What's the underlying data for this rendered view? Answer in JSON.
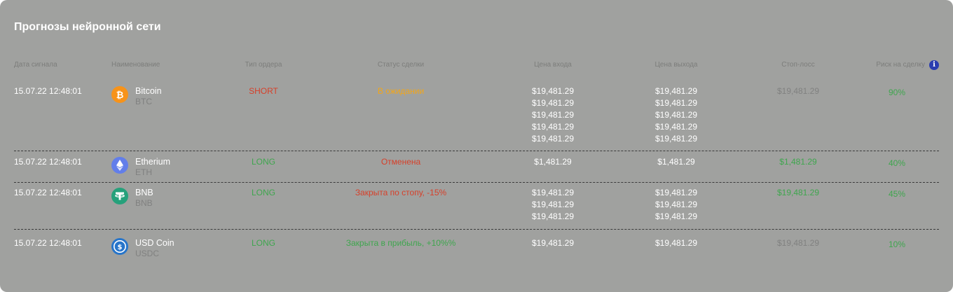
{
  "title": "Прогнозы нейронной сети",
  "headers": {
    "date": "Дата сигнала",
    "name": "Наименование",
    "type": "Тип ордера",
    "status": "Статус сделки",
    "entry": "Цена входа",
    "exit": "Цена выхода",
    "stop": "Стоп-лосс",
    "risk": "Риск на сделку",
    "info_icon_glyph": "i"
  },
  "colors": {
    "background": "#a0a19f",
    "green": "#3fa64e",
    "red": "#d6402a",
    "orange": "#f2a619",
    "grey": "#808180"
  },
  "rows": [
    {
      "date": "15.07.22 12:48:01",
      "icon": "bitcoin-icon",
      "name": "Bitcoin",
      "ticker": "BTC",
      "type": "SHORT",
      "status": "В ожидании",
      "entry": [
        "$19,481.29",
        "$19,481.29",
        "$19,481.29",
        "$19,481.29",
        "$19,481.29"
      ],
      "exit": [
        "$19,481.29",
        "$19,481.29",
        "$19,481.29",
        "$19,481.29",
        "$19,481.29"
      ],
      "stop": "$19,481.29",
      "risk": "90%"
    },
    {
      "date": "15.07.22 12:48:01",
      "icon": "ethereum-icon",
      "name": "Etherium",
      "ticker": "ETH",
      "type": "LONG",
      "status": "Отменена",
      "entry": [
        "$1,481.29"
      ],
      "exit": [
        "$1,481.29"
      ],
      "stop": "$1,481.29",
      "risk": "40%"
    },
    {
      "date": "15.07.22 12:48:01",
      "icon": "tether-icon",
      "name": "BNB",
      "ticker": "BNB",
      "type": "LONG",
      "status": "Закрыта по стопу, -15%",
      "entry": [
        "$19,481.29",
        "$19,481.29",
        "$19,481.29"
      ],
      "exit": [
        "$19,481.29",
        "$19,481.29",
        "$19,481.29"
      ],
      "stop": "$19,481.29",
      "risk": "45%"
    },
    {
      "date": "15.07.22 12:48:01",
      "icon": "usd-coin-icon",
      "name": "USD Coin",
      "ticker": "USDC",
      "type": "LONG",
      "status": "Закрыта в прибыль, +10%%",
      "entry": [
        "$19,481.29"
      ],
      "exit": [
        "$19,481.29"
      ],
      "stop": "$19,481.29",
      "risk": "10%"
    }
  ]
}
